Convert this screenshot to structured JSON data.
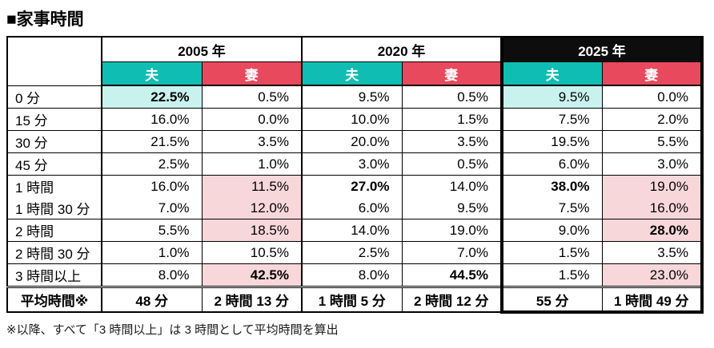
{
  "title": "■家事時間",
  "colors": {
    "teal": "#10bdb2",
    "red": "#e8495d",
    "cyan_light": "#c9f2ef",
    "pink_light": "#f8d7db",
    "header_black": "#0d0d0d"
  },
  "table": {
    "years": [
      {
        "label": "2005 年",
        "style": "plain"
      },
      {
        "label": "2020 年",
        "style": "plain"
      },
      {
        "label": "2025 年",
        "style": "black"
      }
    ],
    "subheaders": {
      "husband": "夫",
      "wife": "妻"
    },
    "rows": [
      {
        "label": "0 分",
        "cells": [
          {
            "v": "22.5%",
            "bg": "cyan",
            "bold": true
          },
          {
            "v": "0.5%"
          },
          {
            "v": "9.5%"
          },
          {
            "v": "0.5%"
          },
          {
            "v": "9.5%",
            "bg": "cyan"
          },
          {
            "v": "0.0%"
          }
        ]
      },
      {
        "label": "15 分",
        "cells": [
          {
            "v": "16.0%"
          },
          {
            "v": "0.0%"
          },
          {
            "v": "10.0%"
          },
          {
            "v": "1.5%"
          },
          {
            "v": "7.5%"
          },
          {
            "v": "2.0%"
          }
        ]
      },
      {
        "label": "30 分",
        "cells": [
          {
            "v": "21.5%"
          },
          {
            "v": "3.5%"
          },
          {
            "v": "20.0%"
          },
          {
            "v": "3.5%"
          },
          {
            "v": "19.5%"
          },
          {
            "v": "5.5%"
          }
        ]
      },
      {
        "label": "45 分",
        "cells": [
          {
            "v": "2.5%"
          },
          {
            "v": "1.0%"
          },
          {
            "v": "3.0%"
          },
          {
            "v": "0.5%"
          },
          {
            "v": "6.0%"
          },
          {
            "v": "3.0%"
          }
        ]
      },
      {
        "label": "1 時間",
        "merge_with_next": true,
        "cells": [
          {
            "v": "16.0%"
          },
          {
            "v": "11.5%",
            "bg": "pink"
          },
          {
            "v": "27.0%",
            "bold": true
          },
          {
            "v": "14.0%"
          },
          {
            "v": "38.0%",
            "bold": true
          },
          {
            "v": "19.0%",
            "bg": "pink"
          }
        ]
      },
      {
        "label": "1 時間 30 分",
        "merged_with_prev": true,
        "cells": [
          {
            "v": "7.0%"
          },
          {
            "v": "12.0%",
            "bg": "pink"
          },
          {
            "v": "6.0%"
          },
          {
            "v": "9.5%"
          },
          {
            "v": "7.5%"
          },
          {
            "v": "16.0%",
            "bg": "pink"
          }
        ]
      },
      {
        "label": "2 時間",
        "cells": [
          {
            "v": "5.5%"
          },
          {
            "v": "18.5%",
            "bg": "pink"
          },
          {
            "v": "14.0%"
          },
          {
            "v": "19.0%"
          },
          {
            "v": "9.0%"
          },
          {
            "v": "28.0%",
            "bg": "pink",
            "bold": true
          }
        ]
      },
      {
        "label": "2 時間 30 分",
        "cells": [
          {
            "v": "1.0%"
          },
          {
            "v": "10.5%"
          },
          {
            "v": "2.5%"
          },
          {
            "v": "7.0%"
          },
          {
            "v": "1.5%"
          },
          {
            "v": "3.5%"
          }
        ]
      },
      {
        "label": "3 時間以上",
        "cells": [
          {
            "v": "8.0%"
          },
          {
            "v": "42.5%",
            "bg": "pink",
            "bold": true
          },
          {
            "v": "8.0%"
          },
          {
            "v": "44.5%",
            "bold": true
          },
          {
            "v": "1.5%"
          },
          {
            "v": "23.0%",
            "bg": "pink"
          }
        ]
      }
    ],
    "average": {
      "label": "平均時間※",
      "values": [
        "48 分",
        "2 時間 13 分",
        "1 時間 5 分",
        "2 時間 12 分",
        "55 分",
        "1 時間 49 分"
      ]
    }
  },
  "footnote": "※以降、すべて「3 時間以上」は 3 時間として平均時間を算出"
}
